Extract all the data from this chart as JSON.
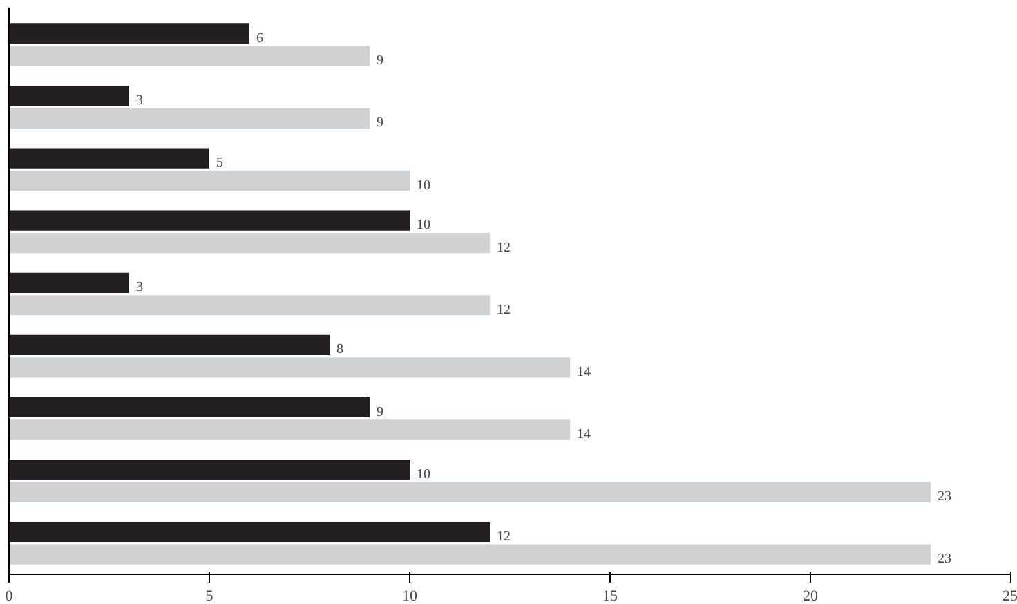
{
  "chart_data": {
    "type": "bar",
    "orientation": "horizontal",
    "categories": [
      null,
      null,
      null,
      null,
      null,
      null,
      null,
      null,
      null
    ],
    "series": [
      {
        "color": "#231f20",
        "values": [
          6,
          3,
          5,
          10,
          3,
          8,
          9,
          10,
          12
        ]
      },
      {
        "color": "#d1d2d3",
        "values": [
          9,
          9,
          10,
          12,
          12,
          14,
          14,
          23,
          23
        ]
      }
    ],
    "xlim": [
      0,
      25
    ],
    "xticks": [
      0,
      5,
      10,
      15,
      20,
      25
    ],
    "data_labels": true,
    "grid": false
  }
}
